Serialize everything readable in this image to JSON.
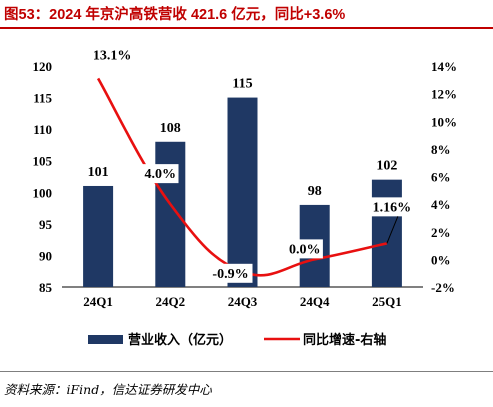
{
  "title": "图53：2024 年京沪高铁营收 421.6 亿元，同比+3.6%",
  "source": "资料来源：iFind，信达证券研发中心",
  "colors": {
    "title": "#c00000",
    "bar": "#1f3864",
    "line": "#e81010"
  },
  "chart_data": {
    "type": "bar+line",
    "categories": [
      "24Q1",
      "24Q2",
      "24Q3",
      "24Q4",
      "25Q1"
    ],
    "series": [
      {
        "name": "营业收入（亿元）",
        "type": "bar",
        "axis": "left",
        "values": [
          101,
          108,
          115,
          98,
          102
        ],
        "labels": [
          "101",
          "108",
          "115",
          "98",
          "102"
        ]
      },
      {
        "name": "同比增速-右轴",
        "type": "line",
        "axis": "right",
        "values": [
          13.1,
          4.0,
          -0.9,
          0.0,
          1.16
        ],
        "labels": [
          "13.1%",
          "4.0%",
          "-0.9%",
          "0.0%",
          "1.16%"
        ]
      }
    ],
    "y_left": {
      "min": 85,
      "max": 120,
      "step": 5,
      "ticks": [
        "85",
        "90",
        "95",
        "100",
        "105",
        "110",
        "115",
        "120"
      ]
    },
    "y_right": {
      "min": -2,
      "max": 14,
      "step": 2,
      "ticks": [
        "-2%",
        "0%",
        "2%",
        "4%",
        "6%",
        "8%",
        "10%",
        "12%",
        "14%"
      ]
    },
    "legend": {
      "position": "bottom",
      "items": [
        "营业收入（亿元）",
        "同比增速-右轴"
      ]
    }
  }
}
